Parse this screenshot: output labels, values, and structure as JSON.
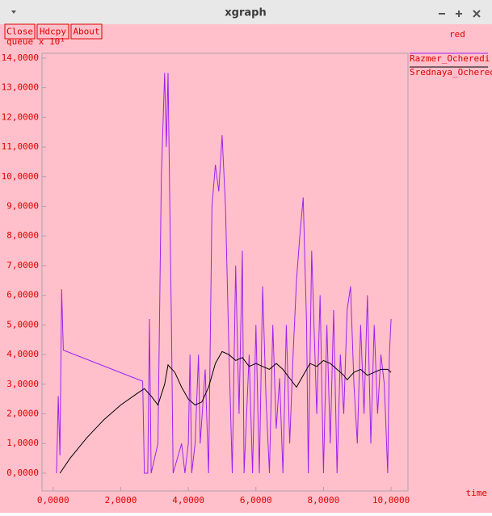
{
  "window": {
    "title": "xgraph",
    "buttons": [
      "Close",
      "Hdcpy",
      "About"
    ],
    "label": "red"
  },
  "chart_data": {
    "type": "line",
    "ylabel": "queue x 10¹",
    "xlabel": "time",
    "xlim": [
      -0.33,
      10.5
    ],
    "ylim": [
      -0.6,
      14.16
    ],
    "xticks": [
      {
        "value": 0,
        "label": "0,0000"
      },
      {
        "value": 2,
        "label": "2,0000"
      },
      {
        "value": 4,
        "label": "4,0000"
      },
      {
        "value": 6,
        "label": "6,0000"
      },
      {
        "value": 8,
        "label": "8,0000"
      },
      {
        "value": 10,
        "label": "10,0000"
      }
    ],
    "yticks": [
      {
        "value": 0,
        "label": "0,0000"
      },
      {
        "value": 1,
        "label": "1,0000"
      },
      {
        "value": 2,
        "label": "2,0000"
      },
      {
        "value": 3,
        "label": "3,0000"
      },
      {
        "value": 4,
        "label": "4,0000"
      },
      {
        "value": 5,
        "label": "5,0000"
      },
      {
        "value": 6,
        "label": "6,0000"
      },
      {
        "value": 7,
        "label": "7,0000"
      },
      {
        "value": 8,
        "label": "8,0000"
      },
      {
        "value": 9,
        "label": "9,0000"
      },
      {
        "value": 10,
        "label": "10,0000"
      },
      {
        "value": 11,
        "label": "11,0000"
      },
      {
        "value": 12,
        "label": "12,0000"
      },
      {
        "value": 13,
        "label": "13,0000"
      },
      {
        "value": 14,
        "label": "14,0000"
      }
    ],
    "grid": false,
    "series": [
      {
        "name": "Razmer_Ocheredi",
        "color": "#a020f0",
        "x": [
          0.1,
          0.15,
          0.2,
          0.25,
          0.3,
          2.65,
          2.7,
          2.8,
          2.85,
          2.9,
          3.1,
          3.2,
          3.3,
          3.35,
          3.4,
          3.5,
          3.55,
          3.8,
          3.9,
          4.0,
          4.05,
          4.1,
          4.2,
          4.3,
          4.35,
          4.5,
          4.6,
          4.7,
          4.8,
          4.9,
          5.0,
          5.1,
          5.2,
          5.3,
          5.4,
          5.5,
          5.6,
          5.65,
          5.8,
          5.9,
          6.0,
          6.1,
          6.2,
          6.3,
          6.4,
          6.5,
          6.6,
          6.7,
          6.8,
          6.9,
          7.0,
          7.1,
          7.2,
          7.3,
          7.4,
          7.5,
          7.55,
          7.65,
          7.8,
          7.9,
          8.0,
          8.1,
          8.2,
          8.3,
          8.4,
          8.5,
          8.6,
          8.7,
          8.8,
          8.9,
          9.0,
          9.1,
          9.2,
          9.3,
          9.4,
          9.5,
          9.6,
          9.7,
          9.8,
          9.9,
          9.95,
          10.0
        ],
        "values": [
          0,
          2.6,
          0.6,
          6.2,
          4.15,
          3.1,
          0,
          0,
          5.2,
          0,
          1.0,
          10,
          13.5,
          11,
          13.5,
          5,
          0,
          1,
          0,
          1,
          4.0,
          0,
          1,
          4,
          1,
          3.5,
          0,
          9,
          10.4,
          9.5,
          11.4,
          9,
          4.2,
          0,
          7,
          2,
          7.5,
          0,
          4,
          0,
          5,
          0,
          6.3,
          2.5,
          0,
          5,
          1.5,
          3.2,
          0,
          5,
          1,
          4,
          6.5,
          8,
          9.3,
          5,
          0,
          7.5,
          2,
          6,
          0,
          5,
          1,
          5.5,
          0,
          4,
          2,
          5.5,
          6.3,
          3,
          1,
          5,
          2,
          6,
          1,
          5,
          2,
          4,
          3,
          0,
          4,
          5.2
        ]
      },
      {
        "name": "Srednaya_Ochered",
        "color": "#000000",
        "x": [
          0.2,
          0.5,
          1,
          1.5,
          2,
          2.5,
          2.7,
          2.9,
          3.1,
          3.3,
          3.4,
          3.6,
          3.8,
          4.0,
          4.2,
          4.4,
          4.6,
          4.8,
          5.0,
          5.2,
          5.4,
          5.6,
          5.8,
          6.0,
          6.2,
          6.4,
          6.6,
          6.8,
          7.0,
          7.2,
          7.4,
          7.6,
          7.8,
          8.0,
          8.2,
          8.4,
          8.6,
          8.7,
          8.9,
          9.1,
          9.3,
          9.5,
          9.7,
          9.9,
          10.0
        ],
        "values": [
          0,
          0.5,
          1.2,
          1.8,
          2.3,
          2.7,
          2.85,
          2.6,
          2.3,
          3.0,
          3.65,
          3.4,
          2.9,
          2.5,
          2.3,
          2.4,
          2.9,
          3.7,
          4.1,
          4.0,
          3.8,
          3.9,
          3.6,
          3.7,
          3.6,
          3.5,
          3.7,
          3.5,
          3.2,
          2.9,
          3.3,
          3.7,
          3.6,
          3.8,
          3.7,
          3.5,
          3.3,
          3.15,
          3.4,
          3.5,
          3.3,
          3.4,
          3.5,
          3.5,
          3.4
        ]
      }
    ]
  }
}
